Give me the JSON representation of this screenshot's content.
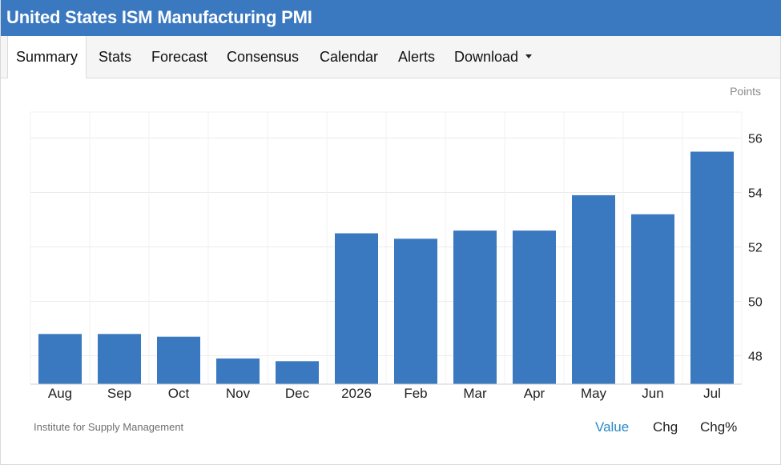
{
  "header": {
    "title": "United States ISM Manufacturing PMI"
  },
  "tabs": [
    {
      "label": "Summary",
      "active": true
    },
    {
      "label": "Stats"
    },
    {
      "label": "Forecast"
    },
    {
      "label": "Consensus"
    },
    {
      "label": "Calendar"
    },
    {
      "label": "Alerts"
    },
    {
      "label": "Download",
      "icon": "caret-down-icon"
    }
  ],
  "chart_data": {
    "type": "bar",
    "categories": [
      "Aug",
      "Sep",
      "Oct",
      "Nov",
      "Dec",
      "2026",
      "Feb",
      "Mar",
      "Apr",
      "May",
      "Jun",
      "Jul"
    ],
    "values": [
      48.8,
      48.8,
      48.7,
      47.9,
      47.8,
      52.5,
      52.3,
      52.6,
      52.6,
      53.9,
      53.2,
      55.5
    ],
    "units_label": "Points",
    "yticks": [
      48,
      50,
      52,
      54,
      56
    ],
    "ylim": [
      47,
      57
    ],
    "grid": true,
    "bar_color": "#3a78c0",
    "axis_side": "right"
  },
  "footer": {
    "source": "Institute for Supply Management",
    "view_tabs": [
      "Value",
      "Chg",
      "Chg%"
    ],
    "active_view": "Value"
  },
  "colors": {
    "accent": "#3a78c0",
    "active_link": "#2a88c8"
  }
}
